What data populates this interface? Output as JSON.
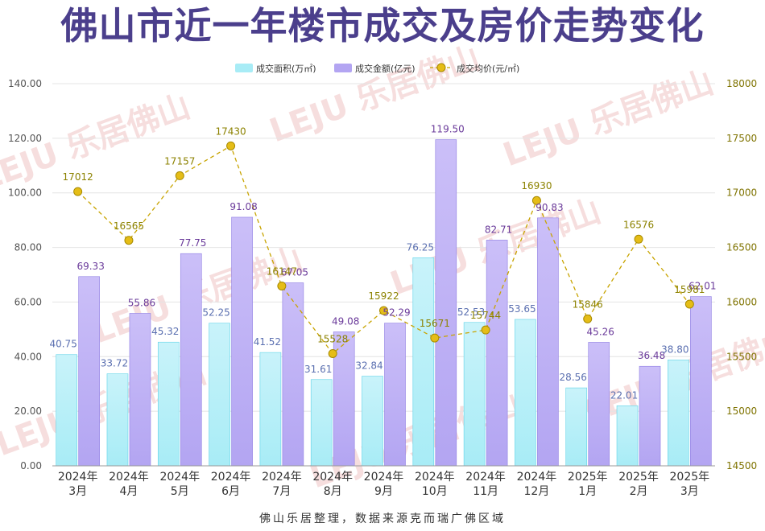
{
  "title": "佛山市近一年楼市成交及房价走势变化",
  "source": "佛山乐居整理，数据来源克而瑞广佛区域",
  "watermark": "LEJU 乐居佛山",
  "colors": {
    "area_bar": "#a8ecf6",
    "area_bar_edge": "#5fd3e8",
    "amount_bar": "#b3a5f2",
    "amount_bar_edge": "#8f7ee3",
    "price_line": "#c8a400",
    "price_dot": "#e5bd17",
    "area_label": "#5a6fb0",
    "amount_label": "#6a3a9a",
    "price_label": "#8c8200",
    "title": "#4b3f8c"
  },
  "chart_data": {
    "type": "bar",
    "categories": [
      "2024年3月",
      "2024年4月",
      "2024年5月",
      "2024年6月",
      "2024年7月",
      "2024年8月",
      "2024年9月",
      "2024年10月",
      "2024年11月",
      "2024年12月",
      "2025年1月",
      "2025年2月",
      "2025年3月"
    ],
    "category_lines": [
      [
        "2024年",
        "3月"
      ],
      [
        "2024年",
        "4月"
      ],
      [
        "2024年",
        "5月"
      ],
      [
        "2024年",
        "6月"
      ],
      [
        "2024年",
        "7月"
      ],
      [
        "2024年",
        "8月"
      ],
      [
        "2024年",
        "9月"
      ],
      [
        "2024年",
        "10月"
      ],
      [
        "2024年",
        "11月"
      ],
      [
        "2024年",
        "12月"
      ],
      [
        "2025年",
        "1月"
      ],
      [
        "2025年",
        "2月"
      ],
      [
        "2025年",
        "3月"
      ]
    ],
    "series": [
      {
        "name": "成交面积(万㎡)",
        "type": "bar",
        "axis": "left",
        "values": [
          40.75,
          33.72,
          45.32,
          52.25,
          41.52,
          31.61,
          32.84,
          76.25,
          52.53,
          53.65,
          28.56,
          22.01,
          38.8
        ],
        "labels": [
          "40.75",
          "33.72",
          "45.32",
          "52.25",
          "41.52",
          "31.61",
          "32.84",
          "76.25",
          "52.53",
          "53.65",
          "28.56",
          "22.01",
          "38.80"
        ]
      },
      {
        "name": "成交金额(亿元)",
        "type": "bar",
        "axis": "left",
        "values": [
          69.33,
          55.86,
          77.75,
          91.08,
          67.05,
          49.08,
          52.29,
          119.5,
          82.71,
          90.83,
          45.26,
          36.48,
          62.01
        ],
        "labels": [
          "69.33",
          "55.86",
          "77.75",
          "91.08",
          "67.05",
          "49.08",
          "52.29",
          "119.50",
          "82.71",
          "90.83",
          "45.26",
          "36.48",
          "62.01"
        ]
      },
      {
        "name": "成交均价(元/㎡)",
        "type": "line",
        "axis": "right",
        "values": [
          17012,
          16565,
          17157,
          17430,
          16147,
          15528,
          15922,
          15671,
          15744,
          16930,
          15846,
          16576,
          15981
        ],
        "labels": [
          "17012",
          "16565",
          "17157",
          "17430",
          "16147",
          "15528",
          "15922",
          "15671",
          "15744",
          "16930",
          "15846",
          "16576",
          "15981"
        ]
      }
    ],
    "y_left": {
      "min": 0,
      "max": 140,
      "ticks": [
        "0.00",
        "20.00",
        "40.00",
        "60.00",
        "80.00",
        "100.00",
        "120.00",
        "140.00"
      ]
    },
    "y_right": {
      "min": 14500,
      "max": 18000,
      "ticks": [
        "14500",
        "15000",
        "15500",
        "16000",
        "16500",
        "17000",
        "17500",
        "18000"
      ]
    },
    "legend_position": "top-center",
    "grid": true
  }
}
